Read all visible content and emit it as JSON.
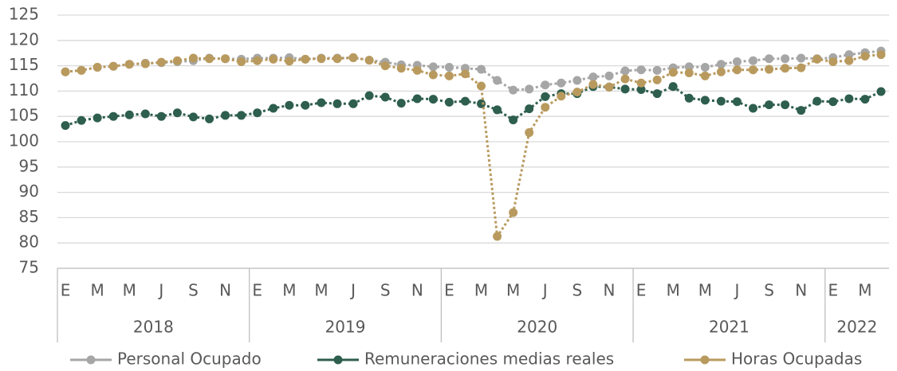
{
  "chart_data": {
    "type": "line",
    "categories": [
      "E",
      null,
      "M",
      null,
      "M",
      null,
      "J",
      null,
      "S",
      null,
      "N",
      null,
      "E",
      null,
      "M",
      null,
      "M",
      null,
      "J",
      null,
      "S",
      null,
      "N",
      null,
      "E",
      null,
      "M",
      null,
      "M",
      null,
      "J",
      null,
      "S",
      null,
      "N",
      null,
      "E",
      null,
      "M",
      null,
      "M",
      null,
      "J",
      null,
      "S",
      null,
      "N",
      null,
      "E",
      null,
      "M",
      null
    ],
    "x_groups": [
      {
        "label": "2018",
        "count": 12
      },
      {
        "label": "2019",
        "count": 12
      },
      {
        "label": "2020",
        "count": 12
      },
      {
        "label": "2021",
        "count": 12
      },
      {
        "label": "2022",
        "count": 4
      }
    ],
    "ylim": [
      75,
      125
    ],
    "yticks": [
      75,
      80,
      85,
      90,
      95,
      100,
      105,
      110,
      115,
      120,
      125
    ],
    "grid": true,
    "legend": "bottom",
    "series": [
      {
        "name": "Personal Ocupado",
        "color": "#a6a6a6",
        "values": [
          113.8,
          114.1,
          114.7,
          114.9,
          115.3,
          115.5,
          115.6,
          115.8,
          116.0,
          116.5,
          116.4,
          116.3,
          116.5,
          116.5,
          116.6,
          116.3,
          116.5,
          116.5,
          116.6,
          116.1,
          115.7,
          115.2,
          115.1,
          114.8,
          114.7,
          114.5,
          114.3,
          112.1,
          110.2,
          110.4,
          111.2,
          111.6,
          112.1,
          112.8,
          113.0,
          114.0,
          114.2,
          114.1,
          114.6,
          114.8,
          114.7,
          115.3,
          115.8,
          116.0,
          116.4,
          116.4,
          116.5,
          116.4,
          116.6,
          117.2,
          117.6,
          117.9
        ]
      },
      {
        "name": "Remuneraciones medias reales",
        "color": "#2e5e4e",
        "values": [
          103.2,
          104.2,
          104.7,
          105.0,
          105.3,
          105.5,
          105.0,
          105.7,
          104.9,
          104.5,
          105.2,
          105.2,
          105.7,
          106.6,
          107.2,
          107.2,
          107.7,
          107.5,
          107.5,
          109.1,
          108.8,
          107.6,
          108.5,
          108.4,
          107.8,
          108.0,
          107.5,
          106.3,
          104.3,
          106.5,
          108.9,
          109.5,
          109.5,
          110.9,
          110.8,
          110.4,
          110.3,
          109.5,
          110.9,
          108.6,
          108.2,
          108.0,
          107.9,
          106.6,
          107.3,
          107.3,
          106.2,
          108.0,
          107.9,
          108.5,
          108.4,
          109.9
        ]
      },
      {
        "name": "Horas Ocupadas",
        "color": "#b99a5e",
        "values": [
          113.8,
          114.1,
          114.7,
          114.9,
          115.3,
          115.4,
          115.7,
          116.0,
          116.5,
          116.4,
          116.4,
          115.8,
          116.0,
          116.3,
          115.9,
          116.3,
          116.4,
          116.4,
          116.6,
          116.1,
          115.0,
          114.5,
          114.1,
          113.2,
          113.0,
          113.4,
          111.0,
          81.3,
          86.0,
          101.8,
          106.8,
          109.0,
          109.8,
          111.3,
          110.8,
          112.4,
          111.6,
          112.2,
          113.7,
          113.6,
          113.0,
          113.8,
          114.2,
          114.2,
          114.3,
          114.5,
          114.6,
          116.3,
          115.8,
          116.0,
          116.9,
          117.2
        ]
      }
    ]
  }
}
